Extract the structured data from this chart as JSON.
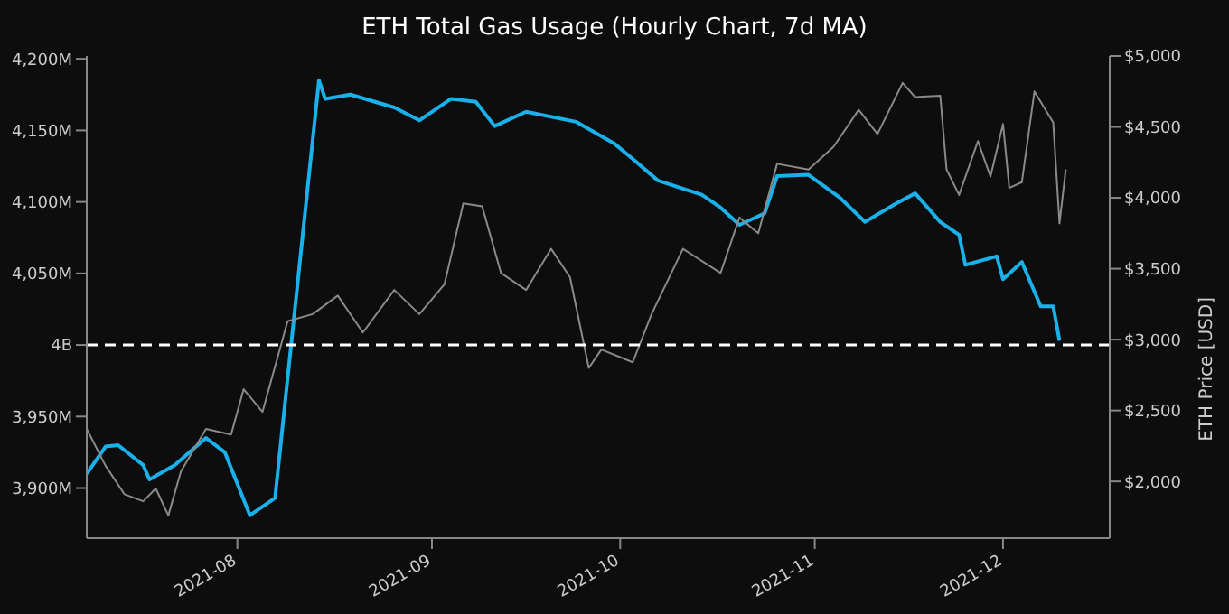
{
  "chart_data": {
    "type": "line",
    "title": "ETH Total Gas Usage (Hourly Chart, 7d MA)",
    "y2label": "ETH Price [USD]",
    "xlim": [
      "2021-07-08",
      "2021-12-18"
    ],
    "xticks": [
      "2021-08",
      "2021-09",
      "2021-10",
      "2021-11",
      "2021-12"
    ],
    "ylim": [
      3865000000,
      4202000000
    ],
    "yticks": [
      {
        "value": 3900000000,
        "label": "3,900M"
      },
      {
        "value": 3950000000,
        "label": "3,950M"
      },
      {
        "value": 4000000000,
        "label": "4B"
      },
      {
        "value": 4050000000,
        "label": "4,050M"
      },
      {
        "value": 4100000000,
        "label": "4,100M"
      },
      {
        "value": 4150000000,
        "label": "4,150M"
      },
      {
        "value": 4200000000,
        "label": "4,200M"
      }
    ],
    "y2lim": [
      1600,
      5000
    ],
    "y2ticks": [
      {
        "value": 2000,
        "label": "$2,000"
      },
      {
        "value": 2500,
        "label": "$2,500"
      },
      {
        "value": 3000,
        "label": "$3,000"
      },
      {
        "value": 3500,
        "label": "$3,500"
      },
      {
        "value": 4000,
        "label": "$4,000"
      },
      {
        "value": 4500,
        "label": "$4,500"
      },
      {
        "value": 5000,
        "label": "$5,000"
      }
    ],
    "grid": false,
    "legend": false,
    "marker": "none",
    "line_style": "solid",
    "ref_lines": [
      {
        "axis": "y",
        "value": 4000000000,
        "color": "#ffffff",
        "line_style": "dashed"
      }
    ],
    "series": [
      {
        "color": "#1ab0ea",
        "x": [
          "2021-07-08",
          "2021-07-11",
          "2021-07-13",
          "2021-07-17",
          "2021-07-18",
          "2021-07-22",
          "2021-07-27",
          "2021-07-30",
          "2021-08-01",
          "2021-08-03",
          "2021-08-07",
          "2021-08-14",
          "2021-08-15",
          "2021-08-19",
          "2021-08-26",
          "2021-08-30",
          "2021-09-04",
          "2021-09-08",
          "2021-09-11",
          "2021-09-16",
          "2021-09-24",
          "2021-09-30",
          "2021-10-03",
          "2021-10-07",
          "2021-10-14",
          "2021-10-17",
          "2021-10-20",
          "2021-10-24",
          "2021-10-26",
          "2021-10-31",
          "2021-11-05",
          "2021-11-09",
          "2021-11-14",
          "2021-11-17",
          "2021-11-21",
          "2021-11-24",
          "2021-11-25",
          "2021-11-30",
          "2021-12-01",
          "2021-12-04",
          "2021-12-07",
          "2021-12-09",
          "2021-12-10"
        ],
        "values": [
          3910000000,
          3929000000,
          3930000000,
          3916000000,
          3906000000,
          3916000000,
          3935000000,
          3925000000,
          3903000000,
          3881000000,
          3893000000,
          4185000000,
          4172000000,
          4175000000,
          4166000000,
          4157000000,
          4172000000,
          4170000000,
          4153000000,
          4163000000,
          4156000000,
          4141000000,
          4130000000,
          4115000000,
          4105000000,
          4096000000,
          4084000000,
          4092000000,
          4118000000,
          4119000000,
          4103000000,
          4086000000,
          4099000000,
          4106000000,
          4086000000,
          4077000000,
          4056000000,
          4062000000,
          4046000000,
          4058000000,
          4027000000,
          4027000000,
          4003000000
        ]
      },
      {
        "color": "#8a8a8a",
        "axis": "y2",
        "x": [
          "2021-07-08",
          "2021-07-11",
          "2021-07-14",
          "2021-07-17",
          "2021-07-19",
          "2021-07-21",
          "2021-07-23",
          "2021-07-27",
          "2021-07-31",
          "2021-08-02",
          "2021-08-05",
          "2021-08-09",
          "2021-08-13",
          "2021-08-17",
          "2021-08-21",
          "2021-08-26",
          "2021-08-30",
          "2021-09-03",
          "2021-09-06",
          "2021-09-09",
          "2021-09-12",
          "2021-09-16",
          "2021-09-20",
          "2021-09-23",
          "2021-09-26",
          "2021-09-28",
          "2021-10-03",
          "2021-10-06",
          "2021-10-11",
          "2021-10-17",
          "2021-10-20",
          "2021-10-23",
          "2021-10-26",
          "2021-10-31",
          "2021-11-04",
          "2021-11-08",
          "2021-11-11",
          "2021-11-15",
          "2021-11-17",
          "2021-11-21",
          "2021-11-22",
          "2021-11-24",
          "2021-11-27",
          "2021-11-29",
          "2021-12-01",
          "2021-12-02",
          "2021-12-04",
          "2021-12-06",
          "2021-12-09",
          "2021-12-10",
          "2021-12-11"
        ],
        "values": [
          2370,
          2110,
          1910,
          1860,
          1950,
          1760,
          2070,
          2370,
          2330,
          2650,
          2490,
          3130,
          3180,
          3310,
          3050,
          3350,
          3180,
          3390,
          3960,
          3940,
          3470,
          3350,
          3640,
          3440,
          2800,
          2930,
          2840,
          3180,
          3640,
          3470,
          3860,
          3750,
          4240,
          4200,
          4360,
          4620,
          4450,
          4810,
          4710,
          4720,
          4200,
          4020,
          4400,
          4150,
          4520,
          4070,
          4110,
          4750,
          4530,
          3820,
          4200
        ]
      }
    ]
  }
}
